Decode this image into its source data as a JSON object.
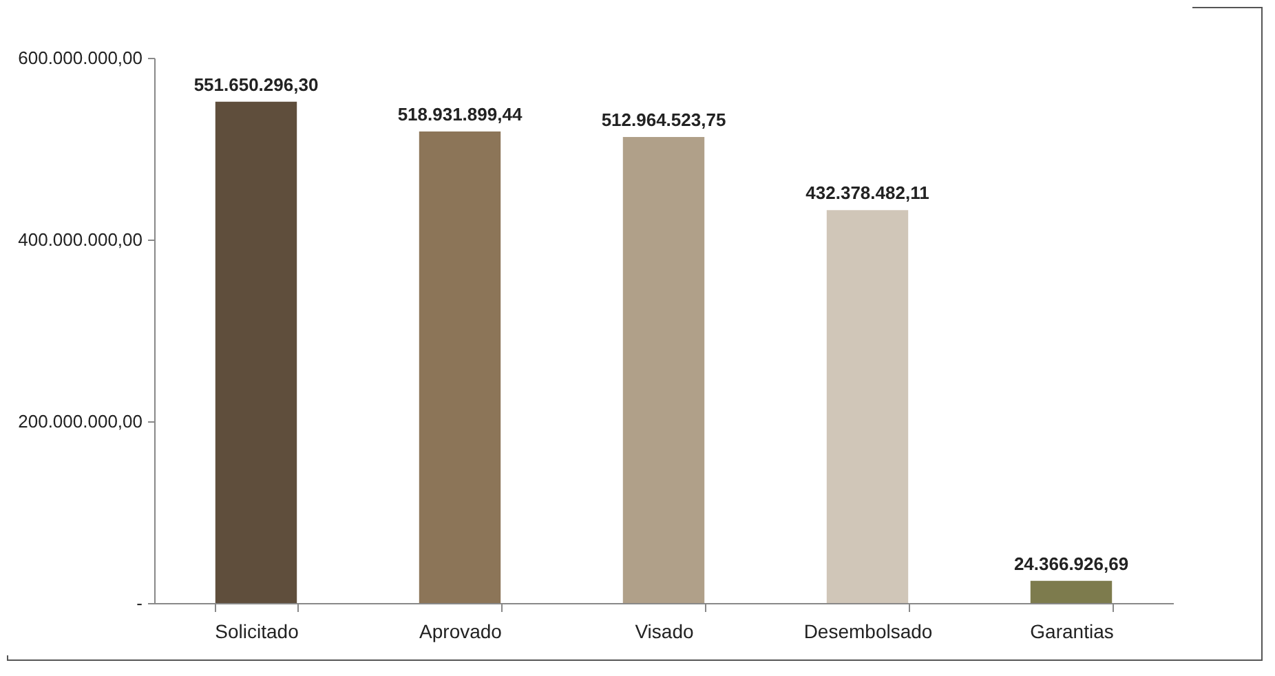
{
  "chart_data": {
    "type": "bar",
    "categories": [
      "Solicitado",
      "Aprovado",
      "Visado",
      "Desembolsado",
      "Garantias"
    ],
    "values": [
      551650296.3,
      518931899.44,
      512964523.75,
      432378482.11,
      24366926.69
    ],
    "colors": [
      "#5f4e3c",
      "#8c7558",
      "#b0a089",
      "#d0c6b8",
      "#7d7b4d"
    ],
    "value_labels": [
      "551.650.296,30",
      "518.931.899,44",
      "512.964.523,75",
      "432.378.482,11",
      "24.366.926,69"
    ],
    "ylim": [
      0,
      600000000
    ],
    "yticks": [
      {
        "value": 0,
        "label": "-"
      },
      {
        "value": 200000000,
        "label": "200.000.000,00"
      },
      {
        "value": 400000000,
        "label": "400.000.000,00"
      },
      {
        "value": 600000000,
        "label": "600.000.000,00"
      }
    ],
    "grid": false
  }
}
